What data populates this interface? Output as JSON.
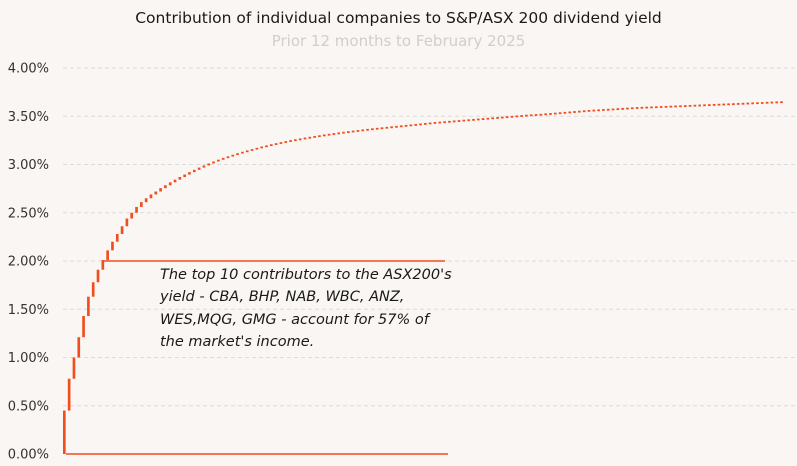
{
  "chart_data": {
    "type": "bar",
    "subtype": "waterfall-cumulative",
    "title": "Contribution of individual companies to S&P/ASX 200 dividend yield",
    "subtitle": "Prior 12 months to February 2025",
    "xlabel": "",
    "ylabel": "",
    "ylim": [
      0,
      4.0
    ],
    "yticks": [
      "0.00%",
      "0.50%",
      "1.00%",
      "1.50%",
      "2.00%",
      "2.50%",
      "3.00%",
      "3.50%",
      "4.00%"
    ],
    "ytick_values": [
      0,
      0.5,
      1.0,
      1.5,
      2.0,
      2.5,
      3.0,
      3.5,
      4.0
    ],
    "grid": true,
    "bar_color": "#f04e1f",
    "annotation": {
      "lines": [
        "The top 10 contributors to the ASX200's",
        "yield - CBA, BHP, NAB, WBC, ANZ,",
        "WES,MQG, GMG - account for 57% of",
        "the market's income."
      ],
      "bracket_level": 2.0
    },
    "cumulative_values": [
      0.45,
      0.78,
      1.0,
      1.21,
      1.43,
      1.63,
      1.78,
      1.91,
      2.01,
      2.11,
      2.2,
      2.28,
      2.36,
      2.44,
      2.5,
      2.56,
      2.61,
      2.65,
      2.69,
      2.72,
      2.755,
      2.785,
      2.815,
      2.843,
      2.87,
      2.896,
      2.921,
      2.945,
      2.968,
      2.99,
      3.011,
      3.031,
      3.05,
      3.068,
      3.085,
      3.101,
      3.117,
      3.132,
      3.146,
      3.16,
      3.173,
      3.186,
      3.198,
      3.21,
      3.221,
      3.232,
      3.242,
      3.252,
      3.261,
      3.27,
      3.279,
      3.287,
      3.295,
      3.303,
      3.311,
      3.318,
      3.325,
      3.332,
      3.339,
      3.345,
      3.351,
      3.357,
      3.363,
      3.369,
      3.375,
      3.38,
      3.385,
      3.39,
      3.395,
      3.4,
      3.405,
      3.41,
      3.415,
      3.42,
      3.425,
      3.43,
      3.435,
      3.44,
      3.444,
      3.448,
      3.452,
      3.456,
      3.46,
      3.464,
      3.468,
      3.472,
      3.476,
      3.48,
      3.484,
      3.488,
      3.492,
      3.496,
      3.5,
      3.504,
      3.508,
      3.512,
      3.516,
      3.519,
      3.522,
      3.525,
      3.529,
      3.533,
      3.537,
      3.541,
      3.545,
      3.549,
      3.553,
      3.557,
      3.561,
      3.565,
      3.568,
      3.571,
      3.574,
      3.577,
      3.58,
      3.583,
      3.586,
      3.589,
      3.592,
      3.595,
      3.597,
      3.599,
      3.601,
      3.603,
      3.605,
      3.607,
      3.609,
      3.611,
      3.613,
      3.615,
      3.617,
      3.619,
      3.621,
      3.623,
      3.625,
      3.627,
      3.629,
      3.631,
      3.633,
      3.635,
      3.637,
      3.639,
      3.641,
      3.643,
      3.645,
      3.647,
      3.649,
      3.651,
      3.653,
      3.655
    ]
  }
}
